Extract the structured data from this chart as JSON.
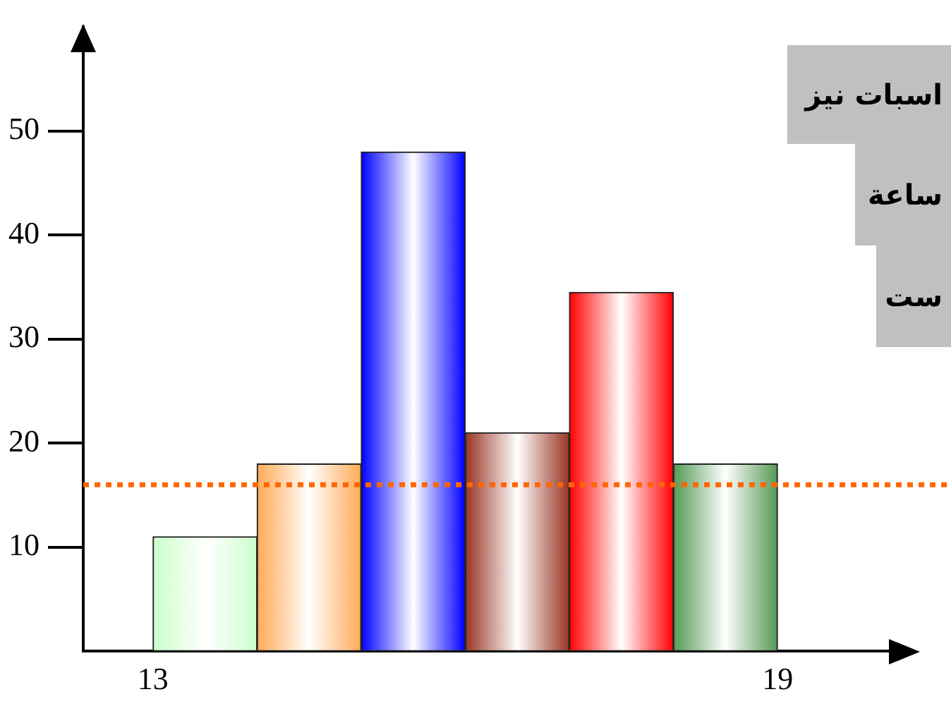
{
  "chart_data": {
    "type": "histogram",
    "bins": [
      13,
      14,
      15,
      16,
      17,
      18,
      19
    ],
    "values": [
      11,
      18,
      48,
      21,
      34.5,
      18
    ],
    "colors": [
      "#ccffcc",
      "#ffaa55",
      "#0000ff",
      "#993322",
      "#ff0000",
      "#559955"
    ],
    "xlim": [
      12.33,
      20.07
    ],
    "xticks": [
      13,
      19
    ],
    "ylim": [
      0,
      60
    ],
    "yticks": [
      10,
      20,
      30,
      40,
      50
    ],
    "ref_lines": [
      {
        "axis": "y",
        "value": 16,
        "color": "#ff6600",
        "line_style": "dotted"
      }
    ],
    "annotations": [
      "اسبات نیز",
      "ساعة",
      "ست"
    ],
    "grid": false,
    "legend": false
  }
}
